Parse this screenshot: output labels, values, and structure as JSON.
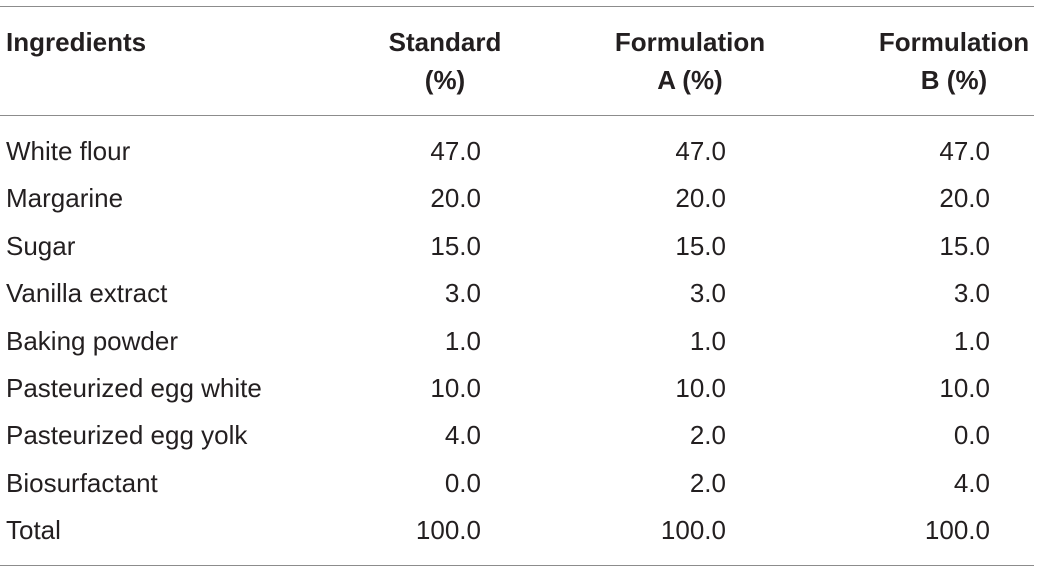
{
  "table": {
    "header": [
      [
        "Ingredients"
      ],
      [
        "Standard",
        "(%)"
      ],
      [
        "Formulation",
        "A (%)"
      ],
      [
        "Formulation",
        "B (%)"
      ]
    ],
    "rows": [
      [
        "White flour",
        "47.0",
        "47.0",
        "47.0"
      ],
      [
        "Margarine",
        "20.0",
        "20.0",
        "20.0"
      ],
      [
        "Sugar",
        "15.0",
        "15.0",
        "15.0"
      ],
      [
        "Vanilla extract",
        "3.0",
        "3.0",
        "3.0"
      ],
      [
        "Baking powder",
        "1.0",
        "1.0",
        "1.0"
      ],
      [
        "Pasteurized egg white",
        "10.0",
        "10.0",
        "10.0"
      ],
      [
        "Pasteurized egg yolk",
        "4.0",
        "2.0",
        "0.0"
      ],
      [
        "Biosurfactant",
        "0.0",
        "2.0",
        "4.0"
      ],
      [
        "Total",
        "100.0",
        "100.0",
        "100.0"
      ]
    ]
  }
}
